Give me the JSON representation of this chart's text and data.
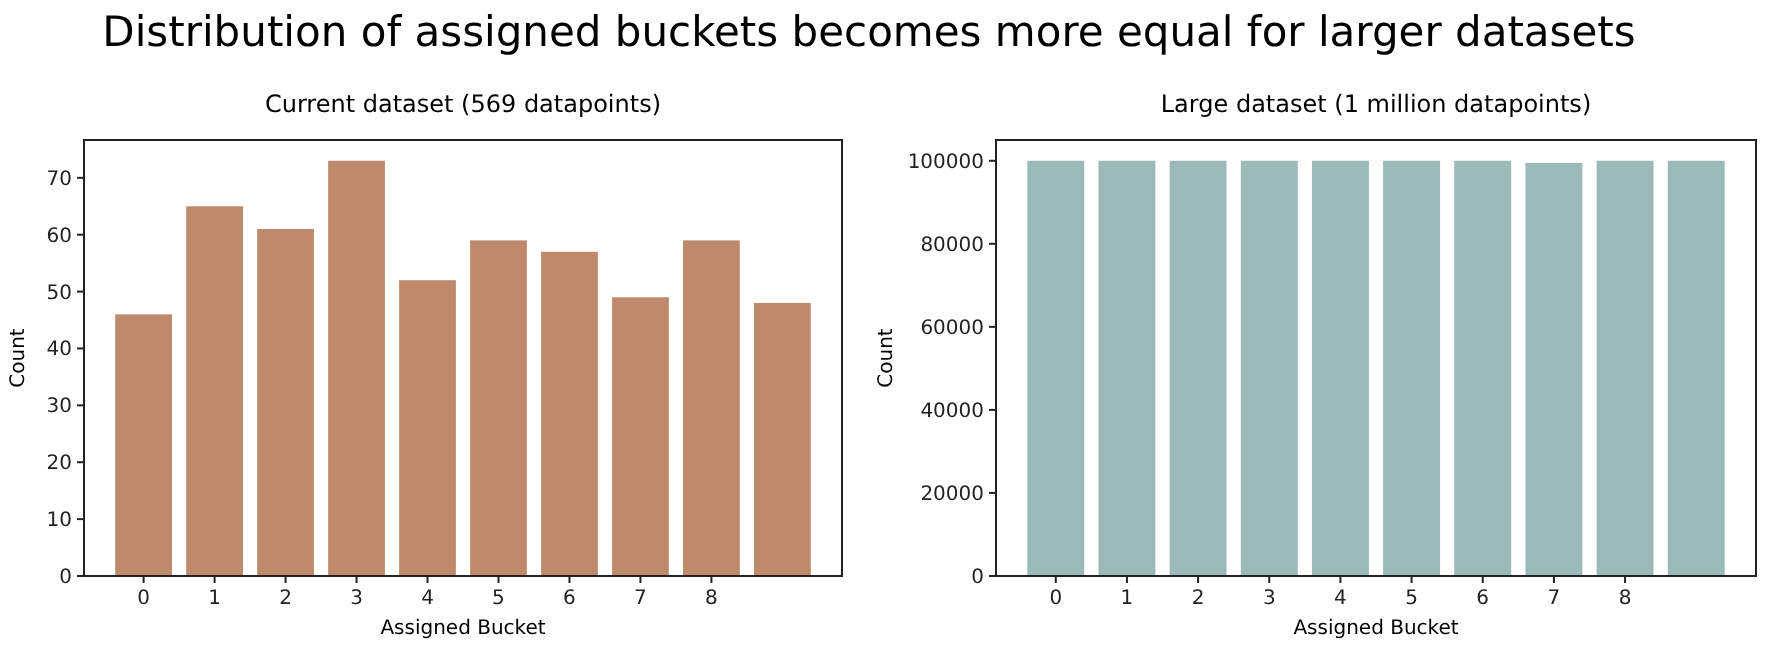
{
  "chart_data": [
    {
      "type": "bar",
      "title": "Current dataset (569 datapoints)",
      "xlabel": "Assigned Bucket",
      "ylabel": "Count",
      "categories": [
        "0",
        "1",
        "2",
        "3",
        "4",
        "5",
        "6",
        "7",
        "8",
        null
      ],
      "values": [
        46,
        65,
        61,
        73,
        52,
        59,
        57,
        49,
        59,
        48
      ],
      "color": "#bf8a6b",
      "ylim": [
        0,
        76.65
      ],
      "yticks": [
        0,
        10,
        20,
        30,
        40,
        50,
        60,
        70
      ],
      "grid": false,
      "annotations": [
        "Distribution of assigned buckets becomes more equal for larger datasets"
      ]
    },
    {
      "type": "bar",
      "title": "Large dataset (1 million datapoints)",
      "xlabel": "Assigned Bucket",
      "ylabel": "Count",
      "categories": [
        "0",
        "1",
        "2",
        "3",
        "4",
        "5",
        "6",
        "7",
        "8",
        null
      ],
      "values": [
        100000,
        100000,
        100000,
        100000,
        100000,
        100000,
        100000,
        99500,
        100000,
        100000
      ],
      "color": "#9bbab7",
      "ylim": [
        0,
        105000
      ],
      "yticks": [
        0,
        20000,
        40000,
        60000,
        80000,
        100000
      ],
      "grid": false
    }
  ]
}
